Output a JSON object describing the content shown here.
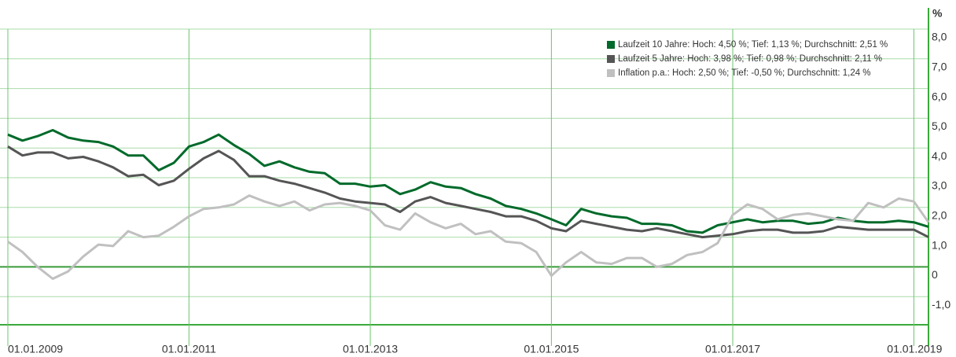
{
  "chart_data": {
    "type": "line",
    "y_label": "%",
    "x": [
      "2009-01-01",
      "2009-03-01",
      "2009-05-01",
      "2009-07-01",
      "2009-09-01",
      "2009-11-01",
      "2010-01-01",
      "2010-03-01",
      "2010-05-01",
      "2010-07-01",
      "2010-09-01",
      "2010-11-01",
      "2011-01-01",
      "2011-03-01",
      "2011-05-01",
      "2011-07-01",
      "2011-09-01",
      "2011-11-01",
      "2012-01-01",
      "2012-03-01",
      "2012-05-01",
      "2012-07-01",
      "2012-09-01",
      "2012-11-01",
      "2013-01-01",
      "2013-03-01",
      "2013-05-01",
      "2013-07-01",
      "2013-09-01",
      "2013-11-01",
      "2014-01-01",
      "2014-03-01",
      "2014-05-01",
      "2014-07-01",
      "2014-09-01",
      "2014-11-01",
      "2015-01-01",
      "2015-03-01",
      "2015-05-01",
      "2015-07-01",
      "2015-09-01",
      "2015-11-01",
      "2016-01-01",
      "2016-03-01",
      "2016-05-01",
      "2016-07-01",
      "2016-09-01",
      "2016-11-01",
      "2017-01-01",
      "2017-03-01",
      "2017-05-01",
      "2017-07-01",
      "2017-09-01",
      "2017-11-01",
      "2018-01-01",
      "2018-03-01",
      "2018-05-01",
      "2018-07-01",
      "2018-09-01",
      "2018-11-01",
      "2019-01-01",
      "2019-03-01"
    ],
    "series": [
      {
        "name": "Laufzeit 10 Jahre: Hoch: 4,50 %; Tief: 1,13 %; Durchschnitt: 2,51 %",
        "color": "#006a2a",
        "values": [
          4.45,
          4.25,
          4.4,
          4.6,
          4.35,
          4.25,
          4.2,
          4.05,
          3.75,
          3.75,
          3.25,
          3.5,
          4.05,
          4.2,
          4.45,
          4.1,
          3.8,
          3.4,
          3.55,
          3.35,
          3.2,
          3.15,
          2.8,
          2.8,
          2.7,
          2.75,
          2.45,
          2.6,
          2.85,
          2.7,
          2.65,
          2.45,
          2.3,
          2.05,
          1.95,
          1.8,
          1.6,
          1.4,
          1.95,
          1.8,
          1.7,
          1.65,
          1.45,
          1.45,
          1.4,
          1.2,
          1.15,
          1.4,
          1.5,
          1.6,
          1.5,
          1.55,
          1.55,
          1.45,
          1.5,
          1.65,
          1.55,
          1.5,
          1.5,
          1.55,
          1.5,
          1.35
        ]
      },
      {
        "name": "Laufzeit 5 Jahre: Hoch: 3,98 %; Tief: 0,98 %; Durchschnitt: 2,11 %",
        "color": "#555555",
        "values": [
          4.05,
          3.75,
          3.85,
          3.85,
          3.65,
          3.7,
          3.55,
          3.35,
          3.05,
          3.1,
          2.75,
          2.9,
          3.3,
          3.65,
          3.9,
          3.6,
          3.05,
          3.05,
          2.9,
          2.8,
          2.65,
          2.5,
          2.3,
          2.2,
          2.15,
          2.1,
          1.85,
          2.2,
          2.35,
          2.15,
          2.05,
          1.95,
          1.85,
          1.7,
          1.7,
          1.55,
          1.3,
          1.2,
          1.55,
          1.45,
          1.35,
          1.25,
          1.2,
          1.3,
          1.2,
          1.1,
          1.0,
          1.05,
          1.1,
          1.2,
          1.25,
          1.25,
          1.15,
          1.15,
          1.2,
          1.35,
          1.3,
          1.25,
          1.25,
          1.25,
          1.25,
          1.0
        ]
      },
      {
        "name": "Inflation p.a.: Hoch: 2,50 %; Tief: -0,50 %; Durchschnitt: 1,24 %",
        "color": "#c0c0c0",
        "values": [
          0.85,
          0.5,
          0.0,
          -0.4,
          -0.15,
          0.35,
          0.75,
          0.7,
          1.2,
          1.0,
          1.05,
          1.35,
          1.7,
          1.95,
          2.0,
          2.1,
          2.4,
          2.2,
          2.05,
          2.2,
          1.9,
          2.1,
          2.15,
          2.05,
          1.9,
          1.4,
          1.25,
          1.8,
          1.5,
          1.3,
          1.45,
          1.1,
          1.2,
          0.85,
          0.8,
          0.5,
          -0.3,
          0.15,
          0.5,
          0.15,
          0.1,
          0.3,
          0.3,
          0.0,
          0.1,
          0.4,
          0.5,
          0.8,
          1.75,
          2.1,
          1.95,
          1.6,
          1.75,
          1.8,
          1.7,
          1.6,
          1.55,
          2.15,
          2.0,
          2.3,
          2.2,
          1.5
        ]
      }
    ],
    "xlim": [
      "2009-01-01",
      "2019-03-01"
    ],
    "xticks": [
      {
        "value": "2009-01-01",
        "label": "01.01.2009"
      },
      {
        "value": "2011-01-01",
        "label": "01.01.2011"
      },
      {
        "value": "2013-01-01",
        "label": "01.01.2013"
      },
      {
        "value": "2015-01-01",
        "label": "01.01.2015"
      },
      {
        "value": "2017-01-01",
        "label": "01.01.2017"
      },
      {
        "value": "2019-01-01",
        "label": "01.01.2019"
      }
    ],
    "ylim": [
      -2,
      8
    ],
    "yticks": [
      {
        "value": -1,
        "label": "-1,0"
      },
      0,
      {
        "value": 1,
        "label": "1,0"
      },
      {
        "value": 2,
        "label": "2,0"
      },
      {
        "value": 3,
        "label": "3,0"
      },
      {
        "value": 4,
        "label": "4,0"
      },
      {
        "value": 5,
        "label": "5,0"
      },
      {
        "value": 6,
        "label": "6,0"
      },
      {
        "value": 7,
        "label": "7,0"
      },
      {
        "value": 8,
        "label": "8,0"
      }
    ],
    "grid": true
  }
}
